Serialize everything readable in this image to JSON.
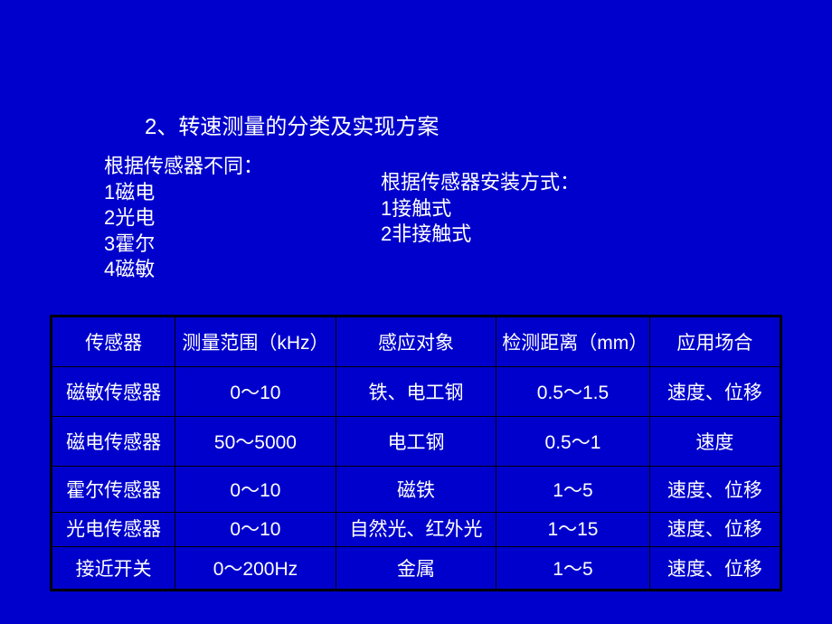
{
  "title": "2、转速测量的分类及实现方案",
  "leftCol": {
    "header": "根据传感器不同：",
    "items": [
      "1磁电",
      "2光电",
      "3霍尔",
      "4磁敏"
    ]
  },
  "rightCol": {
    "header": "根据传感器安装方式：",
    "items": [
      "1接触式",
      "2非接触式"
    ]
  },
  "table": {
    "headers": [
      "传感器",
      "测量范围（kHz）",
      "感应对象",
      "检测距离（mm）",
      "应用场合"
    ],
    "rows": [
      [
        "磁敏传感器",
        "0～10",
        "铁、电工钢",
        "0.5～1.5",
        "速度、位移"
      ],
      [
        "磁电传感器",
        "50～5000",
        "电工钢",
        "0.5～1",
        "速度"
      ],
      [
        "霍尔传感器",
        "0～10",
        "磁铁",
        "1～5",
        "速度、位移"
      ],
      [
        "光电传感器",
        "0～10",
        "自然光、红外光",
        "1～15",
        "速度、位移"
      ],
      [
        "接近开关",
        "0～200Hz",
        "金属",
        "1～5",
        "速度、位移"
      ]
    ],
    "colWidths": [
      "17%",
      "22%",
      "22%",
      "21%",
      "18%"
    ]
  },
  "colors": {
    "background": "#0000cc",
    "text": "#ffffff",
    "border": "#000000"
  }
}
